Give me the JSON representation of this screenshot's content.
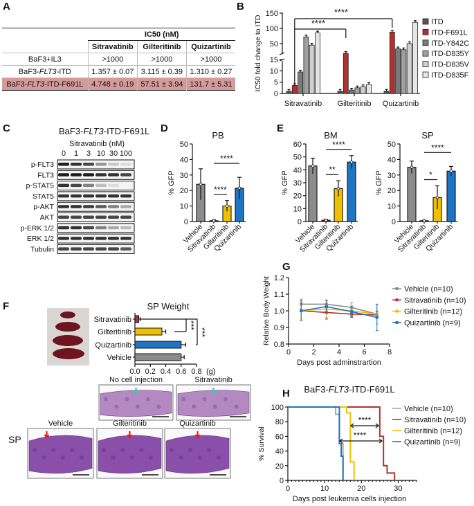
{
  "panel_letters": [
    "A",
    "B",
    "C",
    "D",
    "E",
    "F",
    "G",
    "H"
  ],
  "colors": {
    "vehicle": "#8c8c8c",
    "sitravatinib": "#b3302f",
    "gilteritinib": "#f0c000",
    "quizartinib": "#1f74c4",
    "highlight": "#d59a9a"
  },
  "chart_data": [
    {
      "type": "table",
      "header": "IC50 (nM)",
      "columns": [
        "Sitravatinib",
        "Gilteritinib",
        "Quizartinib"
      ],
      "rows": [
        {
          "label": {
            "pre": "BaF3+IL3",
            "it": "",
            "post": ""
          },
          "values": [
            ">1000",
            ">1000",
            ">1000"
          ],
          "highlight": false
        },
        {
          "label": {
            "pre": "BaF3-",
            "it": "FLT3",
            "post": "-ITD"
          },
          "values": [
            "1.357 ± 0.07",
            "3.115 ± 0.39",
            "1.310 ± 0.27"
          ],
          "highlight": false
        },
        {
          "label": {
            "pre": "BaF3-",
            "it": "FLT3",
            "post": "-ITD-F691L"
          },
          "values": [
            "4.748 ± 0.19",
            "57.51 ± 3.94",
            "131.7 ± 5.31"
          ],
          "highlight": true
        }
      ]
    },
    {
      "type": "bar",
      "ylabel": "IC50 fold change to ITD",
      "y_axis_broken": true,
      "ylim_lower": [
        0,
        15
      ],
      "ylim_upper": [
        15,
        150
      ],
      "yticks_lower": [
        "0",
        "5",
        "10",
        "15"
      ],
      "yticks_upper": [
        "50",
        "100",
        "150"
      ],
      "categories": [
        "Sitravatinib",
        "Gilteritinib",
        "Quizartinib"
      ],
      "series": [
        {
          "name": "ITD",
          "color": "#555555",
          "values": [
            1,
            1,
            1
          ]
        },
        {
          "name": "ITD-F691L",
          "color": "#b3302f",
          "values": [
            3.5,
            18,
            88
          ]
        },
        {
          "name": "ITD-Y842C",
          "color": "#7a7a7a",
          "values": [
            9.5,
            1.5,
            33
          ]
        },
        {
          "name": "ITD-D835Y",
          "color": "#a0a0a0",
          "values": [
            72,
            2.5,
            30
          ]
        },
        {
          "name": "ITD-D835V",
          "color": "#cfcfcf",
          "values": [
            45,
            3,
            50
          ]
        },
        {
          "name": "ITD-D835F",
          "color": "#e6e6e6",
          "values": [
            85,
            4,
            120
          ]
        }
      ],
      "significance": [
        {
          "label": "****"
        },
        {
          "label": "****"
        }
      ],
      "legend": "right"
    },
    {
      "type": "bar",
      "title": "PB",
      "ylabel": "% GFP",
      "ylim": [
        0,
        50
      ],
      "yticks": [
        "0",
        "10",
        "20",
        "30",
        "40",
        "50"
      ],
      "categories": [
        "Vehicle",
        "Sitravatinib",
        "Gilteritinib",
        "Quizartinib"
      ],
      "values": [
        24,
        0.5,
        10,
        21.5
      ],
      "sd": [
        10,
        0.5,
        3.5,
        7
      ],
      "significance": [
        {
          "from": 1,
          "to": 2,
          "label": "****"
        },
        {
          "from": 1,
          "to": 3,
          "label": "****"
        }
      ]
    },
    {
      "type": "bar",
      "title": "BM",
      "ylabel": "% GFP",
      "ylim": [
        0,
        60
      ],
      "yticks": [
        "0",
        "10",
        "20",
        "30",
        "40",
        "50",
        "60"
      ],
      "categories": [
        "Vehicle",
        "Sitravatinib",
        "Gilteritinib",
        "Quizartinib"
      ],
      "values": [
        43,
        1,
        25.5,
        46
      ],
      "sd": [
        6,
        0.7,
        6,
        5
      ],
      "significance": [
        {
          "from": 1,
          "to": 2,
          "label": "**"
        },
        {
          "from": 1,
          "to": 3,
          "label": "****"
        }
      ]
    },
    {
      "type": "bar",
      "title": "SP",
      "ylabel": "% GFP",
      "ylim": [
        0,
        50
      ],
      "yticks": [
        "0",
        "10",
        "20",
        "30",
        "40",
        "50"
      ],
      "categories": [
        "Vehicle",
        "Sitravatinib",
        "Gilteritinib",
        "Quizartinib"
      ],
      "values": [
        35,
        0.5,
        15.5,
        32.5
      ],
      "sd": [
        4,
        0.3,
        7.5,
        3
      ],
      "significance": [
        {
          "from": 1,
          "to": 2,
          "label": "*"
        },
        {
          "from": 1,
          "to": 3,
          "label": "****"
        }
      ]
    },
    {
      "type": "bar",
      "orientation": "horizontal",
      "title": "SP Weight",
      "xunit": "(g)",
      "xlim": [
        0,
        0.8
      ],
      "xticks": [
        "0.0",
        "0.2",
        "0.4",
        "0.6",
        "0.8"
      ],
      "categories": [
        "Sitravatinib",
        "Gilteritinib",
        "Quizartinib",
        "Vehicle"
      ],
      "values": [
        0.05,
        0.35,
        0.6,
        0.6
      ],
      "sd": [
        0.02,
        0.05,
        0.06,
        0.04
      ],
      "significance": [
        {
          "label": "***"
        },
        {
          "label": "***"
        }
      ]
    },
    {
      "type": "line",
      "ylabel": "Relative Body Weight",
      "xlabel": "Days post adminstrartion",
      "xlim": [
        0,
        8
      ],
      "ylim": [
        0.8,
        1.2
      ],
      "xticks": [
        "0",
        "2",
        "4",
        "6",
        "8"
      ],
      "yticks": [
        "0.8",
        "0.9",
        "1.0",
        "1.1",
        "1.2"
      ],
      "x": [
        1,
        3,
        5,
        7
      ],
      "series": [
        {
          "name": "Vehicle (n=10)",
          "color": "#8c8c8c",
          "values": [
            1.04,
            1.04,
            1.02,
            0.98
          ],
          "sd": [
            0.03,
            0.02,
            0.03,
            0.06
          ]
        },
        {
          "name": "Sitravatinib (n=10)",
          "color": "#b3302f",
          "values": [
            1.0,
            0.99,
            0.98,
            0.975
          ],
          "sd": [
            0.05,
            0.04,
            0.02,
            0.02
          ]
        },
        {
          "name": "Gilteritinib (n=12)",
          "color": "#f0c000",
          "values": [
            1.0,
            1.01,
            1.0,
            0.98
          ],
          "sd": [
            0.05,
            0.05,
            0.03,
            0.02
          ]
        },
        {
          "name": "Quizartinib (n=9)",
          "color": "#1f74c4",
          "values": [
            1.0,
            1.025,
            0.995,
            0.96
          ],
          "sd": [
            0.06,
            0.04,
            0.03,
            0.08
          ]
        }
      ],
      "legend": "right"
    },
    {
      "type": "line",
      "step": true,
      "title": {
        "pre": "BaF3-",
        "it": "FLT3",
        "post": "-ITD-F691L"
      },
      "ylabel": "% Survival",
      "xlabel": "Days post leukemia cells injection",
      "xlim": [
        0,
        35
      ],
      "ylim": [
        0,
        100
      ],
      "xticks": [
        "0",
        "10",
        "20",
        "30"
      ],
      "yticks": [
        "0",
        "20",
        "40",
        "60",
        "80",
        "100"
      ],
      "series": [
        {
          "name": "Vehicle (n=10)",
          "color": "#a8a8a8",
          "x": [
            0,
            13,
            14,
            15
          ],
          "values": [
            100,
            90,
            50,
            0
          ]
        },
        {
          "name": "Sitravatinib (n=10)",
          "color": "#b3302f",
          "x": [
            0,
            25,
            26,
            27,
            29
          ],
          "values": [
            100,
            60,
            20,
            10,
            0
          ]
        },
        {
          "name": "Gilteritinib (n=12)",
          "color": "#f0c000",
          "x": [
            0,
            16,
            17,
            18
          ],
          "values": [
            100,
            92,
            25,
            0
          ]
        },
        {
          "name": "Quizartinib (n=9)",
          "color": "#1f74c4",
          "x": [
            0,
            14,
            14.5,
            15
          ],
          "values": [
            100,
            50,
            33,
            0
          ]
        }
      ],
      "significance": [
        {
          "label": "****"
        },
        {
          "label": "****"
        }
      ],
      "legend": "right"
    }
  ],
  "blot": {
    "title": {
      "pre": "BaF3-",
      "it": "FLT3",
      "post": "-ITD-F691L"
    },
    "treatment": "Sitravatinib (nM)",
    "lanes": [
      "0",
      "1",
      "3",
      "10",
      "30",
      "100"
    ],
    "rows": [
      {
        "label": "p-FLT3",
        "intensity": [
          1,
          0.9,
          0.8,
          0.4,
          0.15,
          0.05
        ]
      },
      {
        "label": "FLT3",
        "intensity": [
          1,
          1,
          1,
          0.9,
          0.9,
          0.8
        ]
      },
      {
        "label": "p-STAT5",
        "intensity": [
          0.9,
          0.8,
          0.5,
          0.2,
          0.05,
          0
        ]
      },
      {
        "label": "STAT5",
        "intensity": [
          0.9,
          0.9,
          0.9,
          0.9,
          0.9,
          0.9
        ]
      },
      {
        "label": "p-AKT",
        "intensity": [
          0.9,
          0.9,
          0.85,
          0.7,
          0.5,
          0.3
        ]
      },
      {
        "label": "AKT",
        "intensity": [
          0.8,
          0.8,
          0.8,
          0.8,
          0.8,
          0.8
        ]
      },
      {
        "label": "p-ERK 1/2",
        "intensity": [
          0.9,
          0.9,
          0.8,
          0.5,
          0.3,
          0.2
        ]
      },
      {
        "label": "ERK 1/2",
        "intensity": [
          0.9,
          0.9,
          0.9,
          0.9,
          0.9,
          0.9
        ]
      },
      {
        "label": "Tubulin",
        "intensity": [
          0.8,
          0.8,
          0.8,
          0.8,
          0.8,
          0.7
        ]
      }
    ]
  },
  "histology": {
    "tissue": "SP",
    "images": [
      {
        "label": "No cell injection",
        "arrow": "green"
      },
      {
        "label": "Sitravatinib",
        "arrow": "green"
      },
      {
        "label": "Vehicle",
        "arrow": "red"
      },
      {
        "label": "Gilteritinib",
        "arrow": "red"
      },
      {
        "label": "Quizartinib",
        "arrow": "red"
      }
    ]
  }
}
